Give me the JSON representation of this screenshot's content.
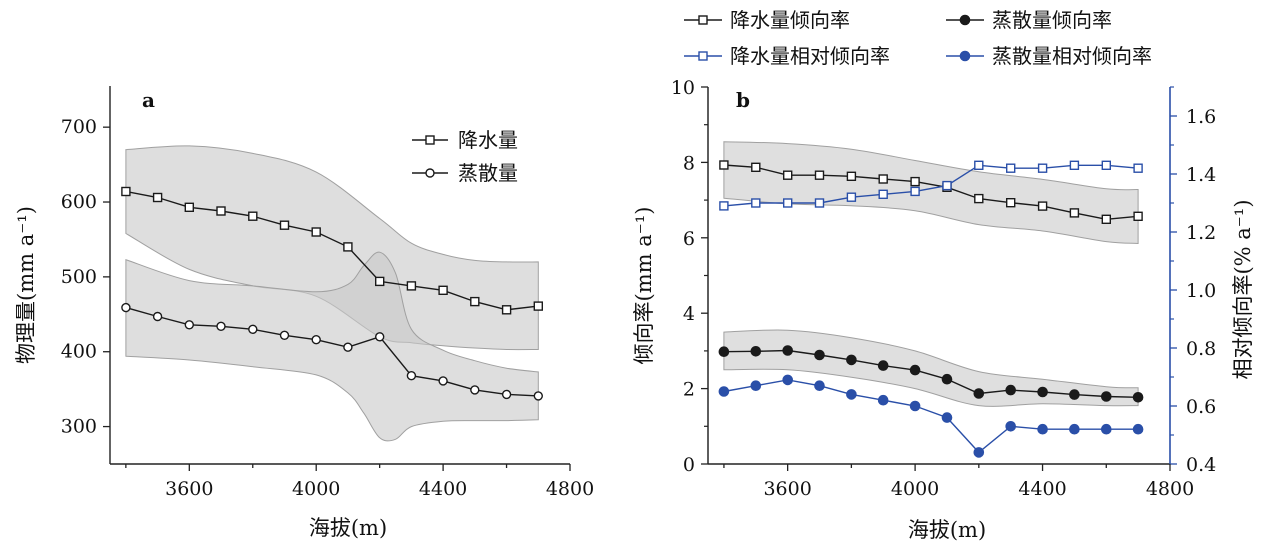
{
  "chart_data": [
    {
      "type": "line",
      "panel_label": "a",
      "xlabel": "海拔(m)",
      "ylabel": "物理量(mm a⁻¹)",
      "xlim": [
        3350,
        4800
      ],
      "ylim": [
        250,
        755
      ],
      "xticks": [
        3600,
        4000,
        4400,
        4800
      ],
      "yticks": [
        300,
        400,
        500,
        600,
        700
      ],
      "legend_position": "top-right",
      "x": [
        3400,
        3500,
        3600,
        3700,
        3800,
        3900,
        4000,
        4100,
        4200,
        4300,
        4400,
        4500,
        4600,
        4700
      ],
      "series": [
        {
          "name": "降水量",
          "marker": "square-open",
          "values": [
            614,
            606,
            593,
            588,
            581,
            569,
            560,
            540,
            494,
            488,
            482,
            467,
            456,
            461
          ],
          "band_x": [
            3400,
            3600,
            3800,
            4000,
            4200,
            4300,
            4400,
            4500,
            4600,
            4700
          ],
          "band_upper": [
            670,
            675,
            665,
            640,
            578,
            545,
            530,
            522,
            520,
            520
          ],
          "band_lower": [
            558,
            510,
            488,
            474,
            420,
            412,
            408,
            405,
            403,
            403
          ]
        },
        {
          "name": "蒸散量",
          "marker": "circle-open",
          "values": [
            459,
            447,
            436,
            434,
            430,
            422,
            416,
            406,
            420,
            368,
            361,
            349,
            343,
            341
          ],
          "band_x": [
            3400,
            3600,
            3800,
            4000,
            4100,
            4150,
            4200,
            4250,
            4300,
            4400,
            4500,
            4600,
            4700
          ],
          "band_upper": [
            523,
            495,
            488,
            480,
            490,
            515,
            533,
            505,
            430,
            402,
            388,
            378,
            373
          ],
          "band_lower": [
            394,
            389,
            380,
            369,
            345,
            318,
            285,
            283,
            300,
            307,
            308,
            308,
            309
          ]
        }
      ],
      "colors": {
        "line": "#1a1a1a",
        "band": "#c8c8c8",
        "band_edge": "#a0a0a0"
      }
    },
    {
      "type": "line",
      "panel_label": "b",
      "xlabel": "海拔(m)",
      "ylabel": "倾向率(mm a⁻¹)",
      "y2label": "相对倾向率(% a⁻¹)",
      "xlim": [
        3350,
        4800
      ],
      "ylim": [
        0,
        10
      ],
      "y2lim": [
        0.4,
        1.7
      ],
      "xticks": [
        3600,
        4000,
        4400,
        4800
      ],
      "yticks": [
        0,
        2,
        4,
        6,
        8,
        10
      ],
      "y2ticks": [
        "0.4",
        "0.6",
        "0.8",
        "1.0",
        "1.2",
        "1.4",
        "1.6"
      ],
      "legend_position": "top",
      "x": [
        3400,
        3500,
        3600,
        3700,
        3800,
        3900,
        4000,
        4100,
        4200,
        4300,
        4400,
        4500,
        4600,
        4700
      ],
      "series": [
        {
          "name": "降水量倾向率",
          "axis": "left",
          "marker": "square-open",
          "color": "#1a1a1a",
          "values": [
            7.93,
            7.87,
            7.66,
            7.66,
            7.63,
            7.56,
            7.49,
            7.34,
            7.04,
            6.93,
            6.84,
            6.66,
            6.49,
            6.57
          ],
          "band_x": [
            3400,
            3600,
            3800,
            4000,
            4200,
            4400,
            4600,
            4700
          ],
          "band_upper": [
            8.55,
            8.5,
            8.35,
            8.05,
            7.75,
            7.55,
            7.3,
            7.28
          ],
          "band_lower": [
            7.05,
            6.9,
            6.85,
            6.72,
            6.35,
            6.18,
            5.9,
            5.85
          ]
        },
        {
          "name": "蒸散量倾向率",
          "axis": "left",
          "marker": "circle-filled",
          "color": "#1a1a1a",
          "values": [
            2.98,
            2.99,
            3.01,
            2.89,
            2.76,
            2.61,
            2.49,
            2.25,
            1.87,
            1.96,
            1.91,
            1.84,
            1.79,
            1.77
          ],
          "band_x": [
            3400,
            3600,
            3800,
            4000,
            4200,
            4400,
            4600,
            4700
          ],
          "band_upper": [
            3.5,
            3.55,
            3.35,
            3.0,
            2.45,
            2.25,
            2.05,
            2.02
          ],
          "band_lower": [
            2.5,
            2.5,
            2.3,
            2.0,
            1.55,
            1.6,
            1.55,
            1.55
          ]
        },
        {
          "name": "降水量相对倾向率",
          "axis": "right",
          "marker": "square-open",
          "color": "#2a4fa8",
          "values": [
            1.29,
            1.3,
            1.3,
            1.3,
            1.32,
            1.33,
            1.34,
            1.36,
            1.43,
            1.42,
            1.42,
            1.43,
            1.43,
            1.42
          ]
        },
        {
          "name": "蒸散量相对倾向率",
          "axis": "right",
          "marker": "circle-filled",
          "color": "#2a4fa8",
          "values": [
            0.65,
            0.67,
            0.69,
            0.67,
            0.64,
            0.62,
            0.6,
            0.56,
            0.44,
            0.53,
            0.52,
            0.52,
            0.52,
            0.52
          ]
        }
      ],
      "colors": {
        "left_axis": "#1a1a1a",
        "right_axis": "#2a4fa8",
        "band": "#d4d4d4",
        "band_edge": "#a0a0a0"
      }
    }
  ]
}
